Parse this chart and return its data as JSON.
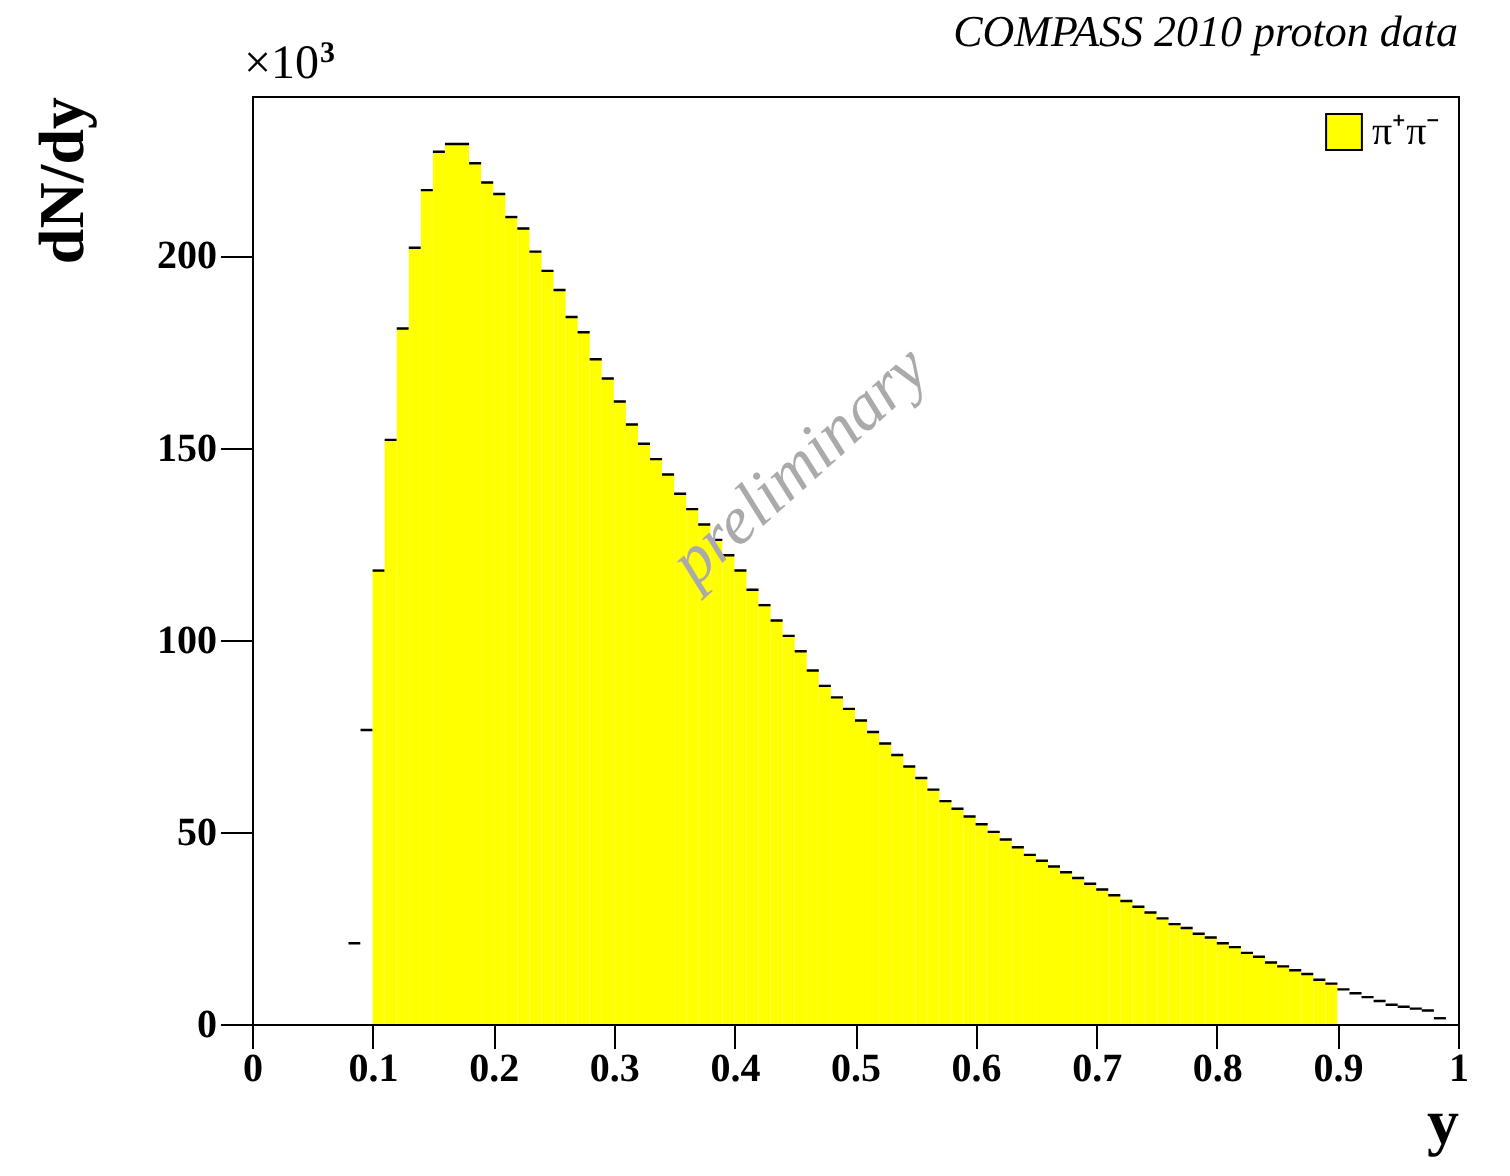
{
  "chart_data": {
    "type": "histogram",
    "title": "COMPASS 2010 proton data",
    "xlabel": "y",
    "ylabel": "dN/dy",
    "annotations": [
      "×10$^{3}$",
      "preliminary"
    ],
    "bins": [
      0,
      0.01,
      0.02,
      0.03,
      0.04,
      0.05,
      0.06,
      0.07,
      0.08,
      0.09,
      0.1,
      0.11,
      0.12,
      0.13,
      0.14,
      0.15,
      0.16,
      0.17,
      0.18,
      0.19,
      0.2,
      0.21,
      0.22,
      0.23,
      0.24,
      0.25,
      0.26,
      0.27,
      0.28,
      0.29,
      0.3,
      0.31,
      0.32,
      0.33,
      0.34,
      0.35,
      0.36,
      0.37,
      0.38,
      0.39,
      0.4,
      0.41,
      0.42,
      0.43,
      0.44,
      0.45,
      0.46,
      0.47,
      0.48,
      0.49,
      0.5,
      0.51,
      0.52,
      0.53,
      0.54,
      0.55,
      0.56,
      0.57,
      0.58,
      0.59,
      0.6,
      0.61,
      0.62,
      0.63,
      0.64,
      0.65,
      0.66,
      0.67,
      0.68,
      0.69,
      0.7,
      0.71,
      0.72,
      0.73,
      0.74,
      0.75,
      0.76,
      0.77,
      0.78,
      0.79,
      0.8,
      0.81,
      0.82,
      0.83,
      0.84,
      0.85,
      0.86,
      0.87,
      0.88,
      0.89,
      0.9,
      0.91,
      0.92,
      0.93,
      0.94,
      0.95,
      0.96,
      0.97,
      0.98,
      0.99,
      1
    ],
    "series": [
      {
        "name": "π⁺π⁻",
        "color": "#ffff00",
        "values": [
          0,
          0,
          0,
          0,
          0,
          0,
          0,
          0,
          21,
          76.5,
          118,
          152,
          181,
          202,
          217,
          227,
          229,
          229,
          224,
          219,
          216,
          210,
          207,
          201,
          196,
          191,
          184,
          180,
          173,
          168,
          162,
          156,
          151,
          147,
          143,
          138,
          134,
          130,
          126,
          122,
          118,
          113,
          109,
          105,
          101,
          97,
          92,
          88,
          85,
          82,
          79,
          76,
          73,
          70,
          67,
          64,
          61,
          58,
          56,
          54,
          52,
          50,
          48,
          46,
          44,
          42.5,
          41,
          39.5,
          38,
          36.5,
          35,
          33.5,
          32,
          30.5,
          29,
          27.5,
          26,
          25,
          23.5,
          22.5,
          21,
          20,
          18.5,
          17.5,
          16,
          15,
          14,
          13,
          11.5,
          10.5,
          9,
          8,
          7,
          6,
          5,
          4.5,
          4,
          3.5,
          1.5,
          0
        ],
        "colors": [
          "#ffffff",
          "#ffffff",
          "#ffffff",
          "#ffffff",
          "#ffffff",
          "#ffffff",
          "#ffffff",
          "#ffffff",
          "#ffffff",
          "#ffffff",
          "#ffff00",
          "#ffff00",
          "#ffff00",
          "#ffff00",
          "#ffff00",
          "#ffff00",
          "#ffff00",
          "#ffff00",
          "#ffff00",
          "#ffff00",
          "#ffff00",
          "#ffff00",
          "#ffff00",
          "#ffff00",
          "#ffff00",
          "#ffff00",
          "#ffff00",
          "#ffff00",
          "#ffff00",
          "#ffff00",
          "#ffff00",
          "#ffff00",
          "#ffff00",
          "#ffff00",
          "#ffff00",
          "#ffff00",
          "#ffff00",
          "#ffff00",
          "#ffff00",
          "#ffff00",
          "#ffff00",
          "#ffff00",
          "#ffff00",
          "#ffff00",
          "#ffff00",
          "#ffff00",
          "#ffff00",
          "#ffff00",
          "#ffff00",
          "#ffff00",
          "#ffff00",
          "#ffff00",
          "#ffff00",
          "#ffff00",
          "#ffff00",
          "#ffff00",
          "#ffff00",
          "#ffff00",
          "#ffff00",
          "#ffff00",
          "#ffff00",
          "#ffff00",
          "#ffff00",
          "#ffff00",
          "#ffff00",
          "#ffff00",
          "#ffff00",
          "#ffff00",
          "#ffff00",
          "#ffff00",
          "#ffff00",
          "#ffff00",
          "#ffff00",
          "#ffff00",
          "#ffff00",
          "#ffff00",
          "#ffff00",
          "#ffff00",
          "#ffff00",
          "#ffff00",
          "#ffff00",
          "#ffff00",
          "#ffff00",
          "#ffff00",
          "#ffff00",
          "#ffff00",
          "#ffff00",
          "#ffff00",
          "#ffff00",
          "#ffff00",
          "#ffffff",
          "#ffffff",
          "#ffffff",
          "#ffffff",
          "#ffffff",
          "#ffffff",
          "#ffffff",
          "#ffffff",
          "#ffffff",
          "#ffffff"
        ]
      }
    ],
    "xlim": [
      0,
      1
    ],
    "xticks": [
      0,
      0.1,
      0.2,
      0.3,
      0.4,
      0.5,
      0.6,
      0.7,
      0.8,
      0.9,
      1
    ],
    "ylim": [
      0,
      241.5
    ],
    "yticks": [
      0,
      50,
      100,
      150,
      200
    ],
    "legend": "top right"
  }
}
